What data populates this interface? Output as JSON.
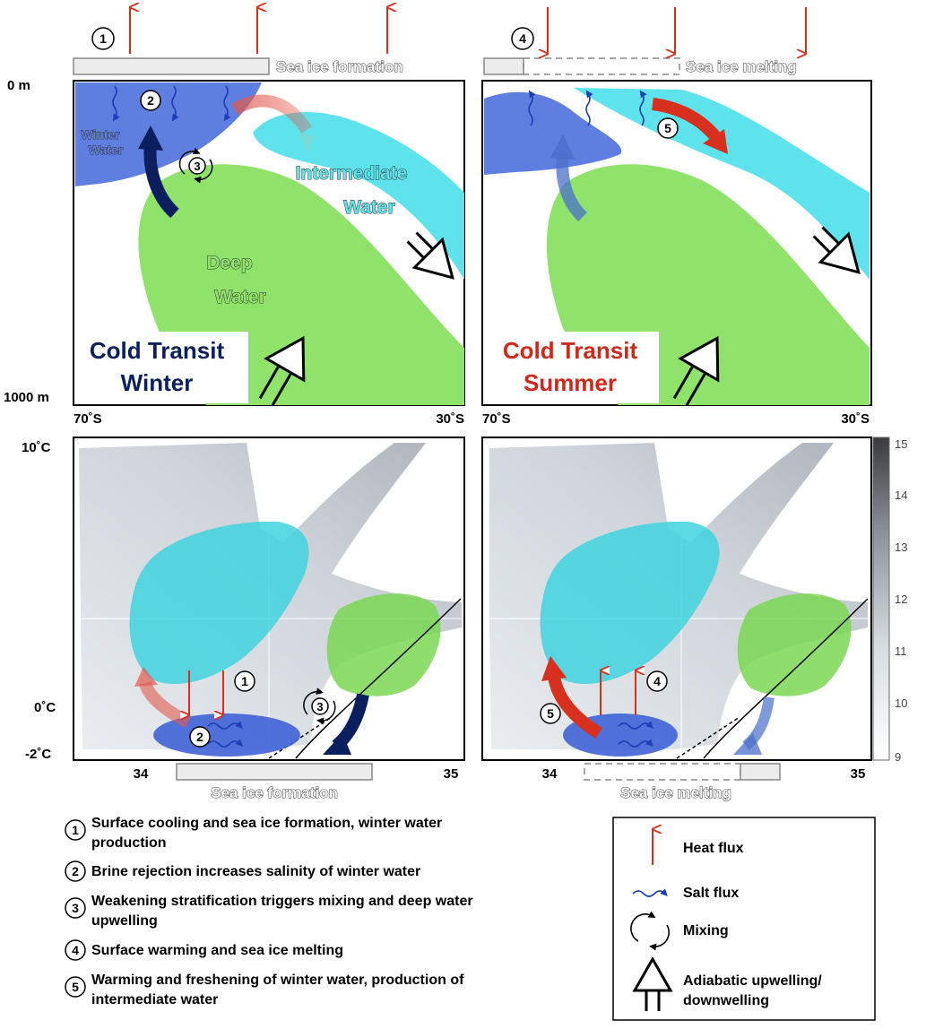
{
  "panels": {
    "top_left": {
      "title_line1": "Cold Transit",
      "title_line2": "Winter",
      "title_color": "#0b1f5e",
      "sea_ice_label": "Sea ice formation",
      "step_top": "1",
      "step_salt": "2",
      "step_mix": "3",
      "water_winter_1": "Winter",
      "water_winter_2": "Water",
      "water_intermediate_1": "Intermediate",
      "water_intermediate_2": "Water",
      "water_deep_1": "Deep",
      "water_deep_2": "Water"
    },
    "top_right": {
      "title_line1": "Cold Transit",
      "title_line2": "Summer",
      "title_color": "#d0281a",
      "sea_ice_label": "Sea ice melting",
      "step_top": "4",
      "step_warm": "5"
    },
    "bottom_left": {
      "sea_ice_label": "Sea ice formation",
      "step_heat": "1",
      "step_salt": "2",
      "step_mix": "3"
    },
    "bottom_right": {
      "sea_ice_label": "Sea ice melting",
      "step_heat": "4",
      "step_warm": "5"
    }
  },
  "axes": {
    "depth_top": "0 m",
    "depth_bottom": "1000 m",
    "lat_left": "70˚S",
    "lat_right": "30˚S",
    "temp_top": "10˚C",
    "temp_zero": "0˚C",
    "temp_bottom": "-2˚C",
    "sal_left": "34",
    "sal_right": "35"
  },
  "colorbar": {
    "ticks": [
      "15",
      "14",
      "13",
      "12",
      "11",
      "10",
      "9"
    ]
  },
  "steps": [
    {
      "num": "1",
      "text_line1": "Surface cooling and sea ice formation, winter water",
      "text_line2": "production"
    },
    {
      "num": "2",
      "text_line1": "Brine rejection increases salinity of winter water",
      "text_line2": ""
    },
    {
      "num": "3",
      "text_line1": "Weakening stratification triggers mixing and deep water",
      "text_line2": "upwelling"
    },
    {
      "num": "4",
      "text_line1": "Surface warming and sea ice melting",
      "text_line2": ""
    },
    {
      "num": "5",
      "text_line1": "Warming and freshening of winter water, production of",
      "text_line2": "intermediate water"
    }
  ],
  "legend": {
    "heat_flux": "Heat flux",
    "salt_flux": "Salt flux",
    "mixing": "Mixing",
    "adiabatic_line1": "Adiabatic upwelling/",
    "adiabatic_line2": "downwelling"
  },
  "colors": {
    "winter_water": "#5f7fe0",
    "intermediate_water": "#5ee3ec",
    "deep_water": "#8fe36a",
    "heat_arrow": "#d8301e",
    "salt_flux": "#1c3fb8",
    "dark_navy": "#0b1f5e"
  }
}
